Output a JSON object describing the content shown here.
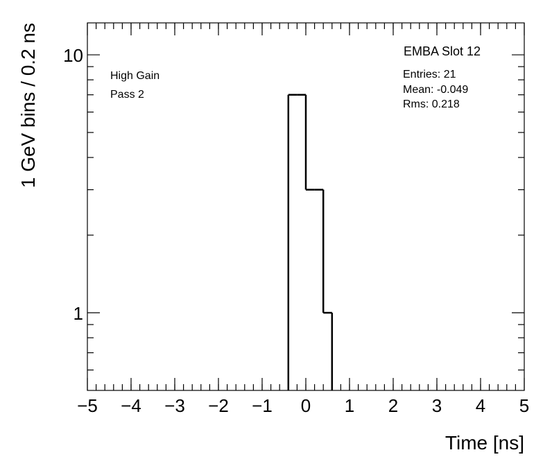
{
  "chart_data": {
    "type": "histogram",
    "title": "EMBA Slot 12",
    "annotations": [
      "High Gain",
      "Pass 2"
    ],
    "stats": [
      "Entries: 21",
      "Mean: -0.049",
      "Rms: 0.218"
    ],
    "x_label": "Time [ns]",
    "y_label": "1 GeV bins / 0.2 ns",
    "bins": [
      -0.4,
      -0.2,
      0,
      0.2,
      0.4,
      0.6
    ],
    "values": [
      7,
      7,
      3,
      3,
      1
    ],
    "color": "#000000",
    "xlim": [
      -5,
      5
    ],
    "xticks": [
      {
        "value": -5,
        "label": "−5"
      },
      {
        "value": -4,
        "label": "−4"
      },
      {
        "value": -3,
        "label": "−3"
      },
      {
        "value": -2,
        "label": "−2"
      },
      {
        "value": -1,
        "label": "−1"
      },
      0,
      1,
      2,
      3,
      4,
      5
    ],
    "xminor_step": 0.2,
    "ylim": [
      0.5,
      13.3
    ],
    "yscale": "log",
    "yticks": [
      1,
      10
    ],
    "yminorticks": [
      0.6,
      0.7,
      0.8,
      0.9,
      2,
      3,
      4,
      5,
      6,
      7,
      8,
      9
    ]
  }
}
